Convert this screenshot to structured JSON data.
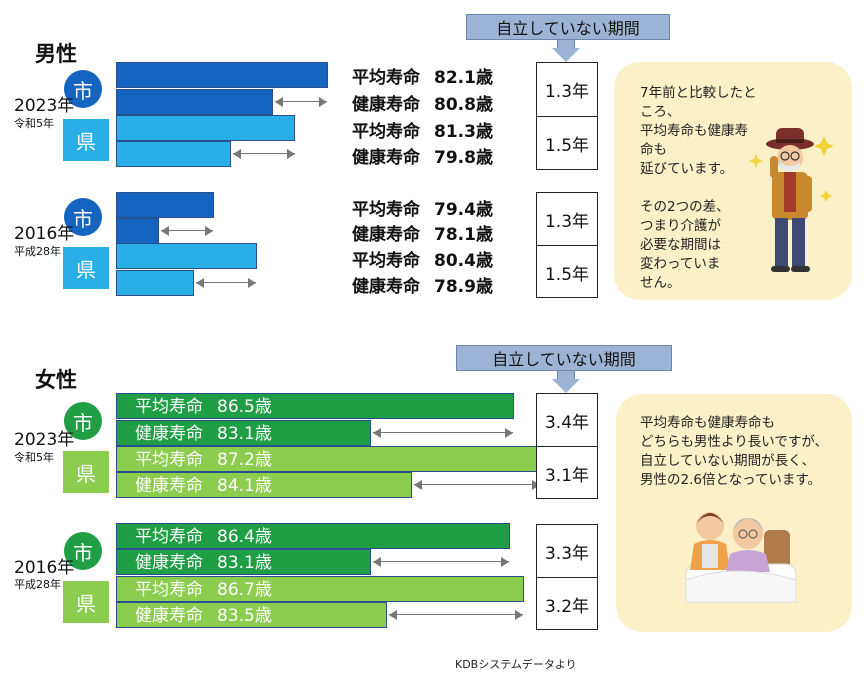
{
  "colors": {
    "city_male": "#1565c0",
    "pref_male": "#29aee8",
    "city_female": "#1f9e45",
    "pref_female": "#8ccc4e",
    "bubble": "#fbf0c8",
    "callout": "#9bb4d6"
  },
  "source_note": "KDBシステムデータより",
  "male": {
    "title": "男性",
    "callout": "自立していない期間",
    "years": [
      {
        "year": "2023年",
        "era": "令和5年",
        "groups": [
          {
            "badge": "市",
            "life_label": "平均寿命",
            "life_value": "82.1歳",
            "healthy_label": "健康寿命",
            "healthy_value": "80.8歳",
            "gap": "1.3年"
          },
          {
            "badge": "県",
            "life_label": "平均寿命",
            "life_value": "81.3歳",
            "healthy_label": "健康寿命",
            "healthy_value": "79.8歳",
            "gap": "1.5年"
          }
        ]
      },
      {
        "year": "2016年",
        "era": "平成28年",
        "groups": [
          {
            "badge": "市",
            "life_label": "平均寿命",
            "life_value": "79.4歳",
            "healthy_label": "健康寿命",
            "healthy_value": "78.1歳",
            "gap": "1.3年"
          },
          {
            "badge": "県",
            "life_label": "平均寿命",
            "life_value": "80.4歳",
            "healthy_label": "健康寿命",
            "healthy_value": "78.9歳",
            "gap": "1.5年"
          }
        ]
      }
    ],
    "comment": [
      "7年前と比較したところ、",
      "平均寿命も健康寿命も",
      "延びています。",
      "",
      "その2つの差、",
      "つまり介護が",
      "必要な期間は",
      "変わっていま",
      "せん。"
    ]
  },
  "female": {
    "title": "女性",
    "callout": "自立していない期間",
    "years": [
      {
        "year": "2023年",
        "era": "令和5年",
        "groups": [
          {
            "badge": "市",
            "life_label": "平均寿命",
            "life_value": "86.5歳",
            "healthy_label": "健康寿命",
            "healthy_value": "83.1歳",
            "gap": "3.4年"
          },
          {
            "badge": "県",
            "life_label": "平均寿命",
            "life_value": "87.2歳",
            "healthy_label": "健康寿命",
            "healthy_value": "84.1歳",
            "gap": "3.1年"
          }
        ]
      },
      {
        "year": "2016年",
        "era": "平成28年",
        "groups": [
          {
            "badge": "市",
            "life_label": "平均寿命",
            "life_value": "86.4歳",
            "healthy_label": "健康寿命",
            "healthy_value": "83.1歳",
            "gap": "3.3年"
          },
          {
            "badge": "県",
            "life_label": "平均寿命",
            "life_value": "86.7歳",
            "healthy_label": "健康寿命",
            "healthy_value": "83.5歳",
            "gap": "3.2年"
          }
        ]
      }
    ],
    "comment": [
      "平均寿命も健康寿命も",
      "どちらも男性より長いですが、",
      "自立していない期間が長く、",
      "男性の2.6倍となっています。"
    ]
  },
  "chart_data": [
    {
      "type": "bar",
      "orientation": "horizontal",
      "title": "男性",
      "categories": [
        "2023年 市",
        "2023年 県",
        "2016年 市",
        "2016年 県"
      ],
      "series": [
        {
          "name": "平均寿命",
          "values": [
            82.1,
            81.3,
            79.4,
            80.4
          ]
        },
        {
          "name": "健康寿命",
          "values": [
            80.8,
            79.8,
            78.1,
            78.9
          ]
        }
      ],
      "gap_years": [
        1.3,
        1.5,
        1.3,
        1.5
      ],
      "gap_label": "自立していない期間"
    },
    {
      "type": "bar",
      "orientation": "horizontal",
      "title": "女性",
      "categories": [
        "2023年 市",
        "2023年 県",
        "2016年 市",
        "2016年 県"
      ],
      "series": [
        {
          "name": "平均寿命",
          "values": [
            86.5,
            87.2,
            86.4,
            86.7
          ]
        },
        {
          "name": "健康寿命",
          "values": [
            83.1,
            84.1,
            83.1,
            83.5
          ]
        }
      ],
      "gap_years": [
        3.4,
        3.1,
        3.3,
        3.2
      ],
      "gap_label": "自立していない期間"
    }
  ]
}
